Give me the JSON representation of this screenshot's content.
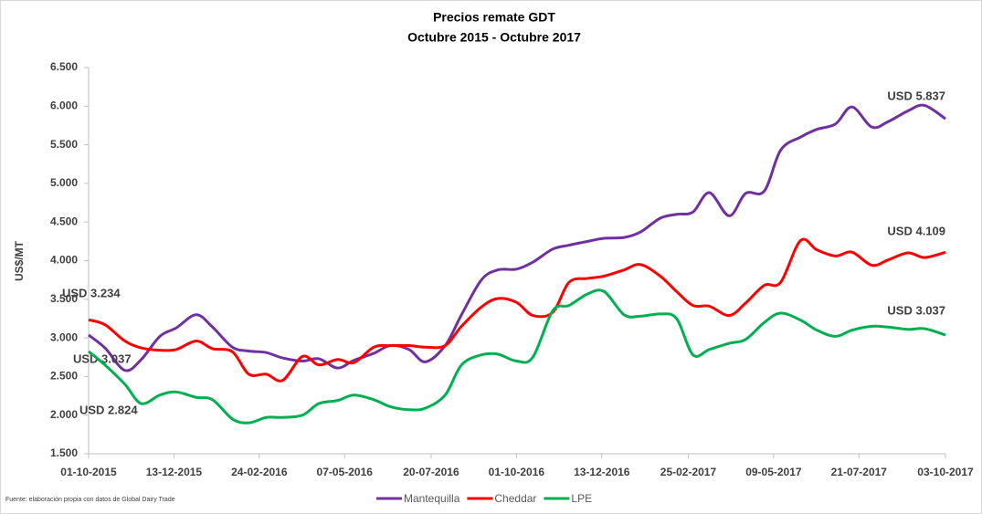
{
  "chart_data": {
    "type": "line",
    "title": "Precios remate GDT",
    "subtitle": "Octubre 2015 - Octubre 2017",
    "y_label": "US$/MT",
    "source": "Fuente: elaboración propia con datos de Global Dairy Trade",
    "x": [
      "01-10-2015",
      "15-10-2015",
      "01-11-2015",
      "15-11-2015",
      "01-12-2015",
      "15-12-2015",
      "01-01-2016",
      "15-01-2016",
      "01-02-2016",
      "15-02-2016",
      "01-03-2016",
      "15-03-2016",
      "01-04-2016",
      "15-04-2016",
      "01-05-2016",
      "15-05-2016",
      "01-06-2016",
      "15-06-2016",
      "01-07-2016",
      "15-07-2016",
      "01-08-2016",
      "15-08-2016",
      "01-09-2016",
      "15-09-2016",
      "01-10-2016",
      "15-10-2016",
      "01-11-2016",
      "15-11-2016",
      "01-12-2016",
      "15-12-2016",
      "01-01-2017",
      "15-01-2017",
      "01-02-2017",
      "15-02-2017",
      "01-03-2017",
      "15-03-2017",
      "01-04-2017",
      "15-04-2017",
      "01-05-2017",
      "15-05-2017",
      "01-06-2017",
      "15-06-2017",
      "01-07-2017",
      "15-07-2017",
      "01-08-2017",
      "15-08-2017",
      "01-09-2017",
      "15-09-2017",
      "03-10-2017"
    ],
    "xlim": [
      "01-10-2015",
      "03-10-2017"
    ],
    "xticks": [
      "01-10-2015",
      "13-12-2015",
      "24-02-2016",
      "07-05-2016",
      "20-07-2016",
      "01-10-2016",
      "13-12-2016",
      "25-02-2017",
      "09-05-2017",
      "21-07-2017",
      "03-10-2017"
    ],
    "ylim": [
      1500,
      6500
    ],
    "yticks": [
      {
        "value": 1500,
        "label": "1.500"
      },
      {
        "value": 2000,
        "label": "2.000"
      },
      {
        "value": 2500,
        "label": "2.500"
      },
      {
        "value": 3000,
        "label": "3.000"
      },
      {
        "value": 3500,
        "label": "3.500"
      },
      {
        "value": 4000,
        "label": "4.000"
      },
      {
        "value": 4500,
        "label": "4.500"
      },
      {
        "value": 5000,
        "label": "5.000"
      },
      {
        "value": 5500,
        "label": "5.500"
      },
      {
        "value": 6000,
        "label": "6.000"
      },
      {
        "value": 6500,
        "label": "6.500"
      }
    ],
    "grid": false,
    "legend": "bottom",
    "series": [
      {
        "name": "Mantequilla",
        "color": "#7030a0",
        "values": [
          3037,
          2870,
          2580,
          2720,
          3020,
          3130,
          3300,
          3140,
          2880,
          2830,
          2810,
          2740,
          2700,
          2730,
          2610,
          2710,
          2800,
          2900,
          2850,
          2690,
          2900,
          3300,
          3750,
          3880,
          3890,
          3980,
          4150,
          4200,
          4250,
          4290,
          4300,
          4370,
          4550,
          4600,
          4630,
          4880,
          4580,
          4870,
          4900,
          5430,
          5600,
          5700,
          5770,
          5990,
          5730,
          5800,
          5940,
          6010,
          5837
        ],
        "value_labels": [
          "USD 3.037",
          null,
          null,
          null,
          null,
          null,
          null,
          null,
          null,
          null,
          null,
          null,
          null,
          null,
          null,
          null,
          null,
          null,
          null,
          null,
          null,
          null,
          null,
          null,
          null,
          null,
          null,
          null,
          null,
          null,
          null,
          null,
          null,
          null,
          null,
          null,
          null,
          null,
          null,
          null,
          null,
          null,
          null,
          null,
          null,
          null,
          null,
          null,
          "USD 5.837"
        ]
      },
      {
        "name": "Cheddar",
        "color": "#ff0000",
        "values": [
          3234,
          3170,
          2960,
          2870,
          2840,
          2850,
          2960,
          2860,
          2820,
          2530,
          2530,
          2450,
          2760,
          2650,
          2720,
          2680,
          2880,
          2900,
          2900,
          2880,
          2900,
          3150,
          3400,
          3510,
          3460,
          3290,
          3330,
          3720,
          3770,
          3800,
          3880,
          3950,
          3800,
          3600,
          3420,
          3410,
          3290,
          3450,
          3680,
          3720,
          4260,
          4140,
          4060,
          4110,
          3940,
          4010,
          4100,
          4040,
          4109
        ],
        "value_labels": [
          "USD 3.234",
          null,
          null,
          null,
          null,
          null,
          null,
          null,
          null,
          null,
          null,
          null,
          null,
          null,
          null,
          null,
          null,
          null,
          null,
          null,
          null,
          null,
          null,
          null,
          null,
          null,
          null,
          null,
          null,
          null,
          null,
          null,
          null,
          null,
          null,
          null,
          null,
          null,
          null,
          null,
          null,
          null,
          null,
          null,
          null,
          null,
          null,
          null,
          "USD 4.109"
        ]
      },
      {
        "name": "LPE",
        "color": "#00b050",
        "values": [
          2824,
          2650,
          2400,
          2150,
          2260,
          2300,
          2230,
          2200,
          1950,
          1900,
          1970,
          1970,
          2000,
          2150,
          2190,
          2260,
          2200,
          2110,
          2070,
          2090,
          2260,
          2650,
          2780,
          2790,
          2700,
          2750,
          3350,
          3420,
          3570,
          3600,
          3300,
          3280,
          3310,
          3250,
          2780,
          2850,
          2930,
          2980,
          3200,
          3320,
          3230,
          3100,
          3020,
          3100,
          3150,
          3140,
          3110,
          3120,
          3037
        ],
        "value_labels": [
          "USD 2.824",
          null,
          null,
          null,
          null,
          null,
          null,
          null,
          null,
          null,
          null,
          null,
          null,
          null,
          null,
          null,
          null,
          null,
          null,
          null,
          null,
          null,
          null,
          null,
          null,
          null,
          null,
          null,
          null,
          null,
          null,
          null,
          null,
          null,
          null,
          null,
          null,
          null,
          null,
          null,
          null,
          null,
          null,
          null,
          null,
          null,
          null,
          null,
          "USD 3.037"
        ]
      }
    ]
  }
}
